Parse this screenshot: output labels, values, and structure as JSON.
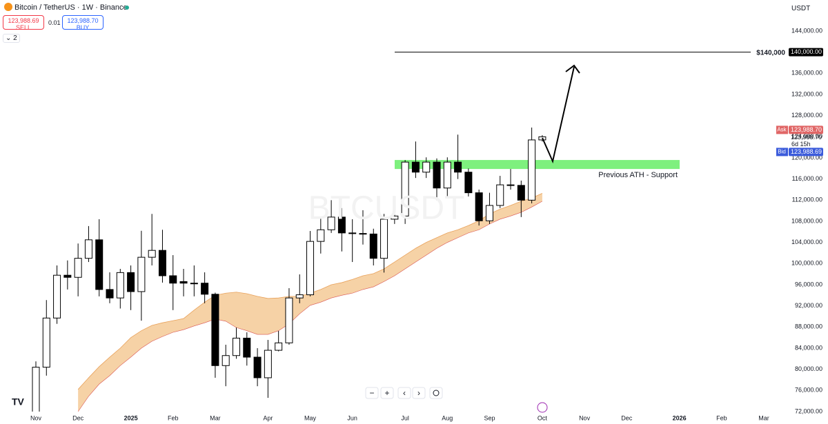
{
  "header": {
    "symbol": "Bitcoin / TetherUS · 1W · Binance",
    "sell_price": "123,988.69",
    "sell_label": "SELL",
    "spread": "0.01",
    "buy_price": "123,988.70",
    "buy_label": "BUY",
    "indicators_count": "2",
    "currency": "USDT",
    "watermark": "BTCUSDT"
  },
  "controls": [
    "−",
    "+",
    "‹",
    "›"
  ],
  "chart_data": {
    "type": "candlestick",
    "categories": [
      null,
      null,
      null,
      null,
      null,
      null,
      null,
      null,
      null,
      null,
      null,
      null,
      null,
      null,
      null,
      null,
      null,
      null,
      null,
      null,
      null,
      null,
      null,
      null,
      null,
      null,
      null,
      null,
      null,
      null,
      null,
      null,
      null,
      null,
      null,
      null,
      null,
      null,
      null,
      null,
      null,
      null,
      null,
      null,
      null,
      null,
      null,
      null,
      null
    ],
    "open": [
      69500,
      80400,
      89700,
      97800,
      97400,
      101000,
      104500,
      95100,
      93500,
      98300,
      94700,
      101200,
      102500,
      97700,
      96600,
      96300,
      96300,
      94200,
      80700,
      82600,
      85900,
      82300,
      78400,
      83600,
      85000,
      93500,
      94100,
      104200,
      106400,
      108800,
      105800,
      105700,
      105600,
      101000,
      108400,
      109000,
      119200,
      117300,
      119200,
      114300,
      119200,
      117300,
      113400,
      108100,
      111000,
      114900,
      114800,
      112000,
      123400
    ],
    "high": [
      81500,
      93100,
      99650,
      100600,
      103800,
      107100,
      108400,
      98350,
      99000,
      99650,
      106200,
      109400,
      106400,
      101600,
      99000,
      99650,
      98350,
      94500,
      84650,
      87900,
      87000,
      84000,
      85560,
      87260,
      95350,
      97960,
      106170,
      108780,
      112000,
      110500,
      108400,
      110100,
      106600,
      109400,
      110100,
      119600,
      123100,
      120100,
      119900,
      120100,
      124400,
      118000,
      114000,
      113400,
      116600,
      117900,
      115700,
      125740,
      124300
    ],
    "low": [
      68800,
      78800,
      88600,
      95100,
      93800,
      100300,
      93800,
      92500,
      91500,
      91200,
      89200,
      99650,
      96400,
      91200,
      93800,
      93800,
      92500,
      78400,
      76800,
      82000,
      80700,
      76800,
      74600,
      83400,
      84650,
      92500,
      93800,
      101900,
      105800,
      102300,
      100300,
      103600,
      99650,
      98300,
      107500,
      107500,
      116200,
      116200,
      112000,
      112700,
      116000,
      112700,
      107200,
      107500,
      110500,
      114000,
      108800,
      111400,
      123100
    ],
    "close": [
      80400,
      89700,
      97800,
      97400,
      101000,
      104500,
      95100,
      93500,
      98300,
      94700,
      101200,
      102500,
      97700,
      96300,
      96300,
      96200,
      94200,
      80700,
      82600,
      85900,
      82300,
      78400,
      83600,
      85000,
      93500,
      94100,
      104200,
      106400,
      108800,
      105800,
      105700,
      105600,
      101000,
      108400,
      109000,
      119200,
      117300,
      119200,
      114300,
      119200,
      117300,
      113400,
      108100,
      111000,
      114900,
      114800,
      112000,
      123400,
      123990
    ],
    "up_color": "#ffffff",
    "down_color": "#000000",
    "band": {
      "color": "#f6d2a6",
      "upper": [
        null,
        null,
        null,
        null,
        76200,
        78400,
        80500,
        82300,
        84000,
        86000,
        87300,
        88300,
        88800,
        89200,
        89600,
        91200,
        92700,
        94000,
        94400,
        94600,
        94300,
        93800,
        93400,
        93500,
        93800,
        93800,
        94400,
        95100,
        96000,
        96400,
        97000,
        97700,
        98100,
        99000,
        100300,
        101600,
        102900,
        104000,
        104900,
        105800,
        106400,
        107200,
        108100,
        109400,
        110300,
        111000,
        111800,
        112400,
        113300
      ],
      "lower": [
        null,
        null,
        null,
        null,
        72000,
        74900,
        77200,
        78800,
        80700,
        82300,
        84000,
        85300,
        86200,
        87000,
        87500,
        88200,
        88800,
        89500,
        89100,
        87900,
        87300,
        86600,
        86600,
        87300,
        88600,
        90500,
        92100,
        92700,
        93500,
        94000,
        94400,
        95100,
        95600,
        96600,
        97700,
        99000,
        100300,
        101600,
        102900,
        104000,
        104900,
        105800,
        106400,
        107500,
        108400,
        109000,
        109700,
        110700,
        111800
      ]
    },
    "zone": {
      "low": 117900,
      "high": 119600,
      "color": "#7ef07e",
      "label": "Previous ATH - Support"
    },
    "target": {
      "value": 140000,
      "label": "$140,000"
    },
    "target_tag": {
      "value": 140000,
      "label": "140,000.00"
    },
    "quote": {
      "ask_label": "Ask",
      "ask": {
        "value": 123988.7,
        "label": "123,988.70"
      },
      "last": {
        "value": 123988.7,
        "label": "123,988.70"
      },
      "countdown": "6d 15h",
      "bid_label": "Bid",
      "bid": {
        "value": 123988.69,
        "label": "123,988.69"
      }
    },
    "xlim": [
      -3.4,
      69.85
    ],
    "xticks": [
      {
        "value": 0,
        "label": "Nov"
      },
      {
        "value": 4,
        "label": "Dec"
      },
      {
        "value": 9,
        "label": "2025"
      },
      {
        "value": 13,
        "label": "Feb"
      },
      {
        "value": 17,
        "label": "Mar"
      },
      {
        "value": 22,
        "label": "Apr"
      },
      {
        "value": 26,
        "label": "May"
      },
      {
        "value": 30,
        "label": "Jun"
      },
      {
        "value": 35,
        "label": "Jul"
      },
      {
        "value": 39,
        "label": "Aug"
      },
      {
        "value": 43,
        "label": "Sep"
      },
      {
        "value": 48,
        "label": "Oct"
      },
      {
        "value": 52,
        "label": "Nov"
      },
      {
        "value": 56,
        "label": "Dec"
      },
      {
        "value": 61,
        "label": "2026"
      },
      {
        "value": 65,
        "label": "Feb"
      },
      {
        "value": 69,
        "label": "Mar"
      }
    ],
    "ylim": [
      72000,
      149870
    ],
    "yticks": [
      {
        "value": 72000,
        "label": "72,000.00"
      },
      {
        "value": 76000,
        "label": "76,000.00"
      },
      {
        "value": 80000,
        "label": "80,000.00"
      },
      {
        "value": 84000,
        "label": "84,000.00"
      },
      {
        "value": 88000,
        "label": "88,000.00"
      },
      {
        "value": 92000,
        "label": "92,000.00"
      },
      {
        "value": 96000,
        "label": "96,000.00"
      },
      {
        "value": 100000,
        "label": "100,000.00"
      },
      {
        "value": 104000,
        "label": "104,000.00"
      },
      {
        "value": 108000,
        "label": "108,000.00"
      },
      {
        "value": 112000,
        "label": "112,000.00"
      },
      {
        "value": 116000,
        "label": "116,000.00"
      },
      {
        "value": 120000,
        "label": "120,000.00"
      },
      {
        "value": 124000,
        "label": "124,000.00"
      },
      {
        "value": 128000,
        "label": "128,000.00"
      },
      {
        "value": 132000,
        "label": "132,000.00"
      },
      {
        "value": 136000,
        "label": "136,000.00"
      },
      {
        "value": 140000,
        "label": "140,000.00"
      },
      {
        "value": 144000,
        "label": "144,000.00"
      }
    ]
  }
}
